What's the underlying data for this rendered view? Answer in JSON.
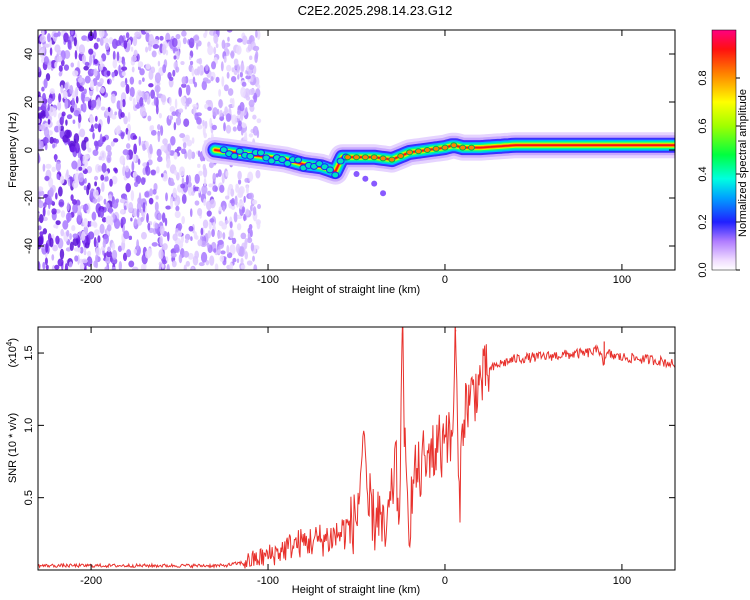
{
  "title": "C2E2.2025.298.14.23.G12",
  "top_panel": {
    "xlabel": "Height of straight line (km)",
    "ylabel": "Frequency (Hz)",
    "xlim": [
      -230,
      130
    ],
    "ylim": [
      -50,
      50
    ],
    "xticks": [
      "-200",
      "-100",
      "0",
      "100"
    ],
    "yticks": [
      "-40",
      "-20",
      "0",
      "20",
      "40"
    ],
    "colorbar": {
      "label": "Normalized spectral amplitude",
      "range": [
        0,
        1
      ],
      "ticks": [
        "0.0",
        "0.2",
        "0.4",
        "0.6",
        "0.8"
      ]
    }
  },
  "bottom_panel": {
    "xlabel": "Height of straight line (km)",
    "ylabel": "SNR (10 * v/v)",
    "multiplier": "(x10",
    "multiplier_exp": "4",
    "multiplier_close": ")",
    "xlim": [
      -230,
      130
    ],
    "ylim": [
      0,
      1.68
    ],
    "xticks": [
      "-200",
      "-100",
      "0",
      "100"
    ],
    "yticks": [
      "0.5",
      "1.0",
      "1.5"
    ]
  },
  "chart_data": [
    {
      "type": "heatmap",
      "xlabel": "Height of straight line (km)",
      "ylabel": "Frequency (Hz)",
      "xlim": [
        -230,
        130
      ],
      "ylim": [
        -50,
        50
      ],
      "colorscale": "rainbow (purple low, red high)",
      "colorbar_label": "Normalized spectral amplitude",
      "features": {
        "noise_region_x": [
          -230,
          -115
        ],
        "main_ridge": {
          "x": [
            -130,
            -120,
            -110,
            -100,
            -90,
            -80,
            -70,
            -62,
            -58,
            -50,
            -40,
            -30,
            -20,
            -10,
            0,
            5,
            10,
            20,
            40,
            60,
            90,
            130
          ],
          "y": [
            0,
            -1,
            -2,
            -3,
            -4,
            -6,
            -7,
            -9,
            -3,
            -3,
            -3,
            -4,
            -1,
            0,
            1,
            2,
            1,
            1,
            2,
            2,
            2,
            2
          ]
        }
      }
    },
    {
      "type": "line",
      "xlabel": "Height of straight line (km)",
      "ylabel": "SNR (10 * v/v)",
      "xlim": [
        -230,
        130
      ],
      "ylim": [
        0,
        1.68
      ],
      "y_multiplier": "x10^4",
      "color": "#e8322d",
      "series": [
        {
          "x": [
            -230,
            -200,
            -150,
            -125,
            -115,
            -105,
            -95,
            -85,
            -75,
            -65,
            -60,
            -55,
            -50,
            -48,
            -46,
            -44,
            -42,
            -40,
            -38,
            -36,
            -34,
            -32,
            -30,
            -28,
            -26,
            -24,
            -22,
            -20,
            -18,
            -16,
            -14,
            -12,
            -10,
            -8,
            -6,
            -4,
            -2,
            0,
            2,
            4,
            6,
            8,
            10,
            12,
            15,
            20,
            25,
            30,
            40,
            50,
            60,
            70,
            80,
            88,
            90,
            92,
            95,
            100,
            110,
            120,
            130
          ],
          "y": [
            0.03,
            0.03,
            0.03,
            0.03,
            0.05,
            0.08,
            0.12,
            0.18,
            0.2,
            0.22,
            0.25,
            0.28,
            0.35,
            0.6,
            1.0,
            0.3,
            0.5,
            0.3,
            0.45,
            0.3,
            0.2,
            0.35,
            0.5,
            0.8,
            0.3,
            1.62,
            0.5,
            0.35,
            0.6,
            0.7,
            0.65,
            0.78,
            0.7,
            0.9,
            0.75,
            0.95,
            0.8,
            1.05,
            0.9,
            0.85,
            1.65,
            0.38,
            1.05,
            1.15,
            1.2,
            1.3,
            1.38,
            1.42,
            1.46,
            1.47,
            1.48,
            1.49,
            1.5,
            1.52,
            1.42,
            1.5,
            1.48,
            1.47,
            1.46,
            1.45,
            1.42
          ]
        }
      ]
    }
  ]
}
